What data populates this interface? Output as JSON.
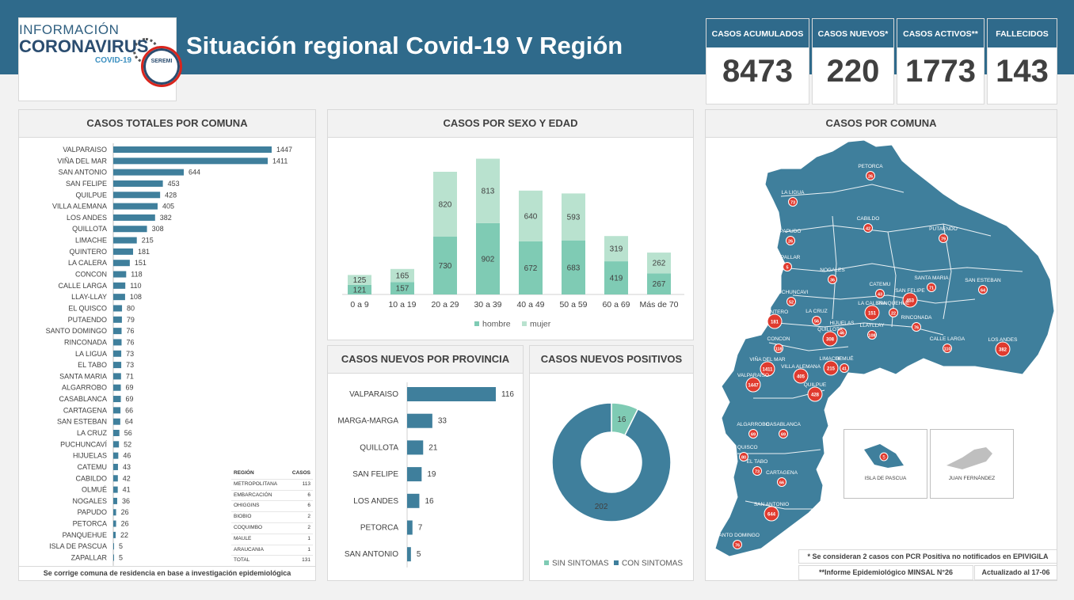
{
  "header": {
    "title": "Situación regional Covid-19 V Región",
    "logo_line1": "INFORMACIÓN",
    "logo_line2": "CORONAVIRUS",
    "logo_line3": "COVID-19",
    "seremi": "SEREMI"
  },
  "kpis": [
    {
      "label": "CASOS ACUMULADOS",
      "value": "8473"
    },
    {
      "label": "CASOS NUEVOS*",
      "value": "220"
    },
    {
      "label": "CASOS ACTIVOS**",
      "value": "1773"
    },
    {
      "label": "FALLECIDOS",
      "value": "143"
    }
  ],
  "panels": {
    "comuna_title": "CASOS TOTALES POR COMUNA",
    "sexo_title": "CASOS POR SEXO Y EDAD",
    "provincia_title": "CASOS NUEVOS  POR PROVINCIA",
    "positivos_title": "CASOS NUEVOS POSITIVOS",
    "map_title": "CASOS POR COMUNA"
  },
  "region_table": {
    "headers": [
      "REGIÓN",
      "CASOS"
    ],
    "rows": [
      [
        "METROPOLITANA",
        "113"
      ],
      [
        "EMBARCACIÓN",
        "6"
      ],
      [
        "OHIGGINS",
        "6"
      ],
      [
        "BIOBIO",
        "2"
      ],
      [
        "COQUIMBO",
        "2"
      ],
      [
        "MAULE",
        "1"
      ],
      [
        "ARAUCANIA",
        "1"
      ],
      [
        "TOTAL",
        "131"
      ]
    ]
  },
  "footnotes": {
    "comuna_note": "Se corrige comuna de residencia en base a investigación epidemiológica",
    "pcr_note": "* Se consideran 2 casos con PCR Positiva no notificados en EPIVIGILA",
    "minsal_note": "**Informe Epidemiológico MINSAL N°26",
    "updated": "Actualizado al 17-06"
  },
  "map": {
    "island1": "ISLA DE PASCUA",
    "island1_value": "5",
    "island2": "JUAN FERNÁNDEZ",
    "labels": [
      {
        "name": "PETORCA",
        "value": "26"
      },
      {
        "name": "LA LIGUA",
        "value": "73"
      },
      {
        "name": "CABILDO",
        "value": "42"
      },
      {
        "name": "PAPUDO",
        "value": "26"
      },
      {
        "name": "ZAPALLAR",
        "value": "5"
      },
      {
        "name": "PUTAENDO",
        "value": "79"
      },
      {
        "name": "NOGALES",
        "value": "36"
      },
      {
        "name": "SANTA MARIA",
        "value": "71"
      },
      {
        "name": "SAN ESTEBAN",
        "value": "64"
      },
      {
        "name": "PUCHUNCAVI",
        "value": "52"
      },
      {
        "name": "CATEMU",
        "value": "43"
      },
      {
        "name": "LA CALERA",
        "value": "151"
      },
      {
        "name": "SAN FELIPE",
        "value": "453"
      },
      {
        "name": "PANQUEHUE",
        "value": "22"
      },
      {
        "name": "RINCONADA",
        "value": "76"
      },
      {
        "name": "QUINTERO",
        "value": "181"
      },
      {
        "name": "LA CRUZ",
        "value": "56"
      },
      {
        "name": "HIJUELAS",
        "value": "46"
      },
      {
        "name": "LLAYLLAY",
        "value": "108"
      },
      {
        "name": "CONCON",
        "value": "118"
      },
      {
        "name": "QUILLOTA",
        "value": "308"
      },
      {
        "name": "CALLE LARGA",
        "value": "110"
      },
      {
        "name": "LOS ANDES",
        "value": "382"
      },
      {
        "name": "VIÑA DEL MAR",
        "value": "1411"
      },
      {
        "name": "LIMACHE",
        "value": "215"
      },
      {
        "name": "OLMUÉ",
        "value": "41"
      },
      {
        "name": "VILLA ALEMANA",
        "value": "405"
      },
      {
        "name": "VALPARAISO",
        "value": "1447"
      },
      {
        "name": "QUILPUE",
        "value": "428"
      },
      {
        "name": "ALGARROBO",
        "value": "69"
      },
      {
        "name": "CASABLANCA",
        "value": "69"
      },
      {
        "name": "EL QUISCO",
        "value": "80"
      },
      {
        "name": "EL TABO",
        "value": "73"
      },
      {
        "name": "CARTAGENA",
        "value": "66"
      },
      {
        "name": "SAN ANTONIO",
        "value": "644"
      },
      {
        "name": "SANTO DOMINGO",
        "value": "76"
      }
    ]
  },
  "chart_data": [
    {
      "type": "bar",
      "orientation": "horizontal",
      "title": "CASOS TOTALES POR COMUNA",
      "categories": [
        "VALPARAISO",
        "VIÑA DEL MAR",
        "SAN ANTONIO",
        "SAN FELIPE",
        "QUILPUE",
        "VILLA ALEMANA",
        "LOS ANDES",
        "QUILLOTA",
        "LIMACHE",
        "QUINTERO",
        "LA CALERA",
        "CONCON",
        "CALLE LARGA",
        "LLAY-LLAY",
        "EL QUISCO",
        "PUTAENDO",
        "SANTO DOMINGO",
        "RINCONADA",
        "LA LIGUA",
        "EL TABO",
        "SANTA MARIA",
        "ALGARROBO",
        "CASABLANCA",
        "CARTAGENA",
        "SAN ESTEBAN",
        "LA CRUZ",
        "PUCHUNCAVÍ",
        "HIJUELAS",
        "CATEMU",
        "CABILDO",
        "OLMUÉ",
        "NOGALES",
        "PAPUDO",
        "PETORCA",
        "PANQUEHUE",
        "ISLA DE PASCUA",
        "ZAPALLAR"
      ],
      "values": [
        1447,
        1411,
        644,
        453,
        428,
        405,
        382,
        308,
        215,
        181,
        151,
        118,
        110,
        108,
        80,
        79,
        76,
        76,
        73,
        73,
        71,
        69,
        69,
        66,
        64,
        56,
        52,
        46,
        43,
        42,
        41,
        36,
        26,
        26,
        22,
        5,
        5
      ],
      "color": "#3f7f9c"
    },
    {
      "type": "bar",
      "stacked": true,
      "title": "CASOS POR SEXO Y EDAD",
      "categories": [
        "0 a 9",
        "10 a 19",
        "20 a 29",
        "30 a 39",
        "40 a 49",
        "50 a 59",
        "60 a 69",
        "Más de 70"
      ],
      "series": [
        {
          "name": "hombre",
          "values": [
            121,
            157,
            730,
            902,
            672,
            683,
            419,
            267
          ],
          "color": "#7fcbb4"
        },
        {
          "name": "mujer",
          "values": [
            125,
            165,
            820,
            813,
            640,
            593,
            319,
            262
          ],
          "color": "#b9e2cf"
        }
      ],
      "legend": "bottom"
    },
    {
      "type": "bar",
      "orientation": "horizontal",
      "title": "CASOS NUEVOS  POR PROVINCIA",
      "categories": [
        "VALPARAISO",
        "MARGA-MARGA",
        "QUILLOTA",
        "SAN FELIPE",
        "LOS ANDES",
        "PETORCA",
        "SAN ANTONIO"
      ],
      "values": [
        116,
        33,
        21,
        19,
        16,
        7,
        5
      ],
      "color": "#3f7f9c"
    },
    {
      "type": "pie",
      "donut": true,
      "title": "CASOS NUEVOS POSITIVOS",
      "categories": [
        "SIN SINTOMAS",
        "CON SINTOMAS"
      ],
      "values": [
        16,
        202
      ],
      "colors": [
        "#7fcbb4",
        "#3f7f9c"
      ],
      "legend": "bottom"
    }
  ]
}
